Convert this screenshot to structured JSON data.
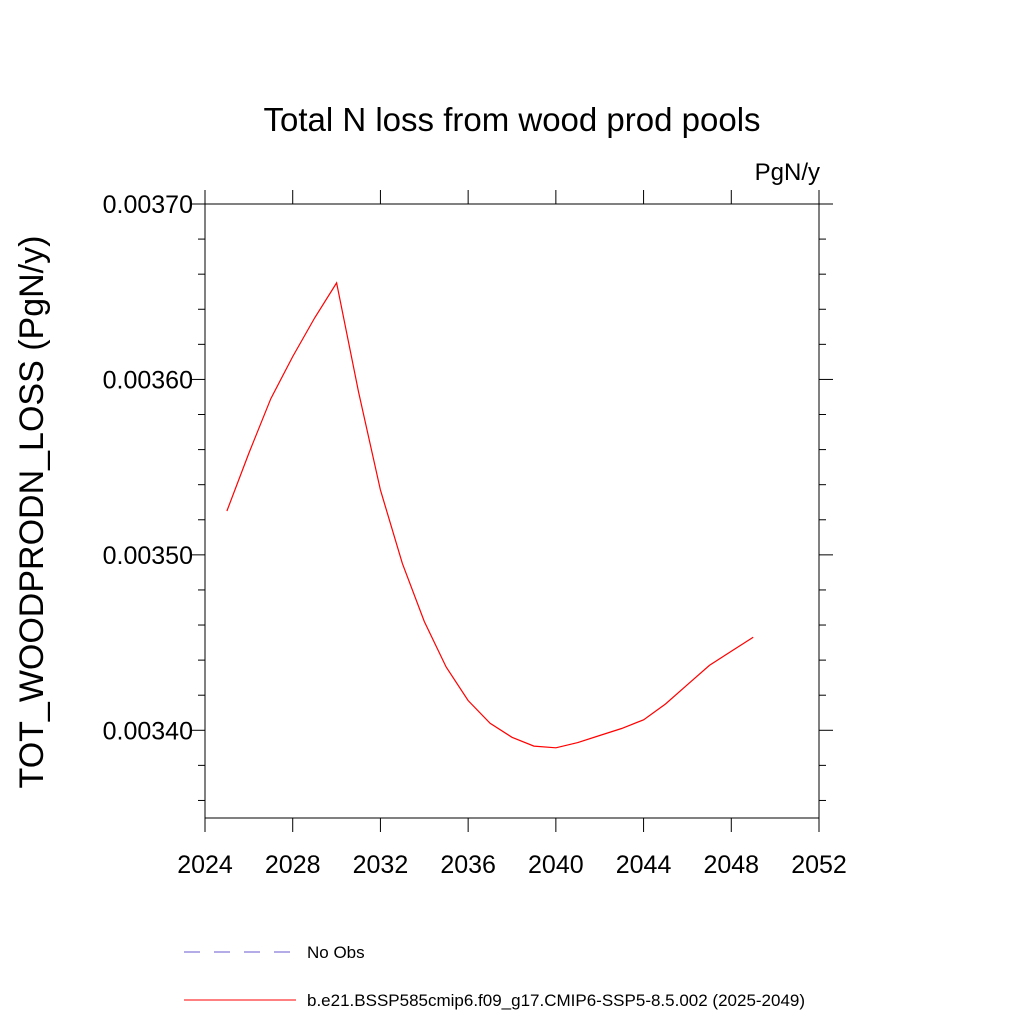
{
  "chart_data": {
    "type": "line",
    "title": "Total N loss from wood prod pools",
    "units_label": "PgN/y",
    "ylabel": "TOT_WOODPRODN_LOSS  (PgN/y)",
    "xlabel": "",
    "xlim": [
      2024,
      2052
    ],
    "ylim": [
      0.00335,
      0.0037
    ],
    "x_ticks": [
      2024,
      2028,
      2032,
      2036,
      2040,
      2044,
      2048,
      2052
    ],
    "x_tick_labels": [
      "2024",
      "2028",
      "2032",
      "2036",
      "2040",
      "2044",
      "2048",
      "2052"
    ],
    "y_ticks": [
      0.0034,
      0.0035,
      0.0036,
      0.0037
    ],
    "y_tick_labels": [
      "0.00340",
      "0.00350",
      "0.00360",
      "0.00370"
    ],
    "grid": false,
    "legend_position": "bottom",
    "series": [
      {
        "name": "No Obs",
        "color": "#6a5acd",
        "style": "dashed",
        "x": [],
        "values": []
      },
      {
        "name": "b.e21.BSSP585cmip6.f09_g17.CMIP6-SSP5-8.5.002 (2025-2049)",
        "color": "#ff0000",
        "style": "solid",
        "x": [
          2025,
          2026,
          2027,
          2028,
          2029,
          2030,
          2031,
          2032,
          2033,
          2034,
          2035,
          2036,
          2037,
          2038,
          2039,
          2040,
          2041,
          2042,
          2043,
          2044,
          2045,
          2046,
          2047,
          2048,
          2049
        ],
        "values": [
          0.003525,
          0.003558,
          0.003589,
          0.003613,
          0.003635,
          0.003655,
          0.003593,
          0.003537,
          0.003495,
          0.003462,
          0.003436,
          0.003417,
          0.003404,
          0.003396,
          0.003391,
          0.00339,
          0.003393,
          0.003397,
          0.003401,
          0.003406,
          0.003415,
          0.003426,
          0.003437,
          0.003445,
          0.003453
        ]
      }
    ]
  }
}
